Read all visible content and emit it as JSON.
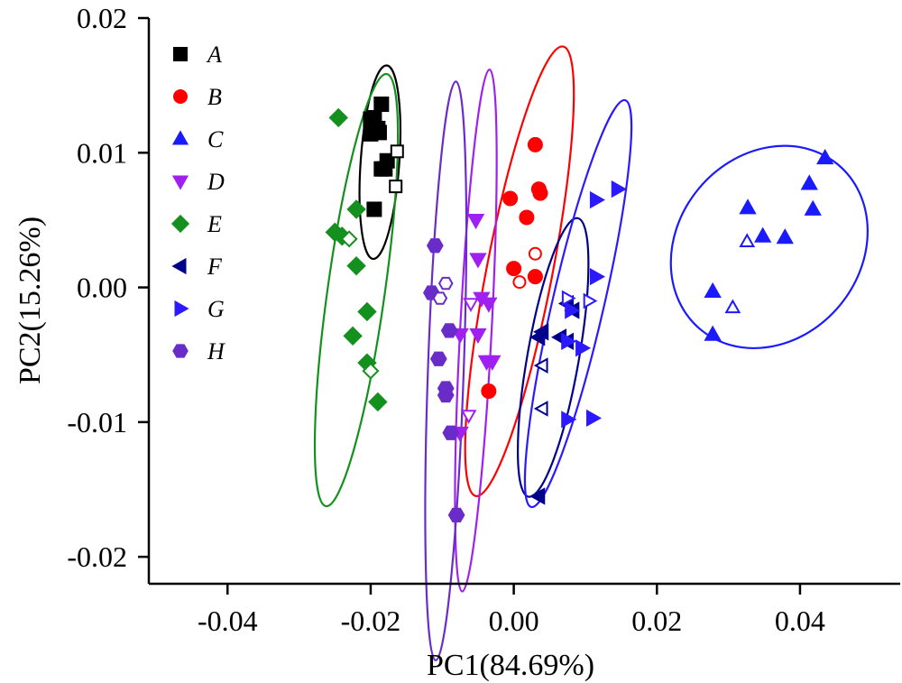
{
  "chart_data": {
    "type": "scatter",
    "title": "",
    "xlabel": "PC1(84.69%)",
    "ylabel": "PC2(15.26%)",
    "xlim": [
      -0.051,
      0.054
    ],
    "ylim": [
      -0.022,
      0.02
    ],
    "xticks": [
      -0.04,
      -0.02,
      0.0,
      0.02,
      0.04
    ],
    "xtick_labels": [
      "-0.04",
      "-0.02",
      "0.00",
      "0.02",
      "0.04"
    ],
    "yticks": [
      -0.02,
      -0.01,
      0.0,
      0.01,
      0.02
    ],
    "ytick_labels": [
      "-0.02",
      "-0.01",
      "0.00",
      "0.01",
      "0.02"
    ],
    "grid": false,
    "legend_position": "top-left",
    "series": [
      {
        "name": "A",
        "marker": "square",
        "color": "#000000",
        "points": [
          [
            -0.0185,
            0.0136
          ],
          [
            -0.0195,
            0.0126
          ],
          [
            -0.02,
            0.0125
          ],
          [
            -0.019,
            0.0118
          ],
          [
            -0.0188,
            0.0115
          ],
          [
            -0.02,
            0.0114
          ],
          [
            -0.0185,
            0.0088
          ],
          [
            -0.0177,
            0.0094
          ],
          [
            -0.018,
            0.0088
          ],
          [
            -0.0195,
            0.0058
          ]
        ],
        "open_points": [
          [
            -0.0163,
            0.0101
          ],
          [
            -0.0165,
            0.0075
          ]
        ],
        "ellipse": {
          "cx": -0.0187,
          "cy": 0.0093,
          "rx": 0.0027,
          "ry": 0.0072,
          "angle": 86,
          "color": "#000000"
        }
      },
      {
        "name": "B",
        "marker": "circle",
        "color": "#ff0000",
        "points": [
          [
            0.003,
            0.0106
          ],
          [
            0.0035,
            0.0073
          ],
          [
            0.0037,
            0.007
          ],
          [
            -0.0005,
            0.0066
          ],
          [
            0.0018,
            0.0052
          ],
          [
            0.0,
            0.0014
          ],
          [
            0.003,
            0.0008
          ],
          [
            -0.0035,
            -0.0077
          ]
        ],
        "open_points": [
          [
            0.003,
            0.0025
          ],
          [
            0.0008,
            0.0004
          ]
        ],
        "ellipse": {
          "cx": 0.0008,
          "cy": 0.0012,
          "rx": 0.0046,
          "ry": 0.017,
          "angle": 79,
          "color": "#ff0000"
        }
      },
      {
        "name": "C",
        "marker": "triangle-up",
        "color": "#1a1aff",
        "points": [
          [
            0.0435,
            0.0096
          ],
          [
            0.0413,
            0.0077
          ],
          [
            0.0418,
            0.0058
          ],
          [
            0.0327,
            0.0059
          ],
          [
            0.0348,
            0.0038
          ],
          [
            0.0379,
            0.0037
          ],
          [
            0.0278,
            -0.0003
          ],
          [
            0.0278,
            -0.0035
          ]
        ],
        "open_points": [
          [
            0.0326,
            0.0034
          ],
          [
            0.0306,
            -0.0015
          ]
        ],
        "ellipse": {
          "cx": 0.0357,
          "cy": 0.003,
          "rx": 0.015,
          "ry": 0.0068,
          "angle": -40,
          "color": "#1a1aff"
        }
      },
      {
        "name": "D",
        "marker": "triangle-down",
        "color": "#a020f0",
        "points": [
          [
            -0.0053,
            0.005
          ],
          [
            -0.005,
            0.0021
          ],
          [
            -0.0045,
            -0.0008
          ],
          [
            -0.0035,
            -0.0012
          ],
          [
            -0.0075,
            -0.0035
          ],
          [
            -0.005,
            -0.0035
          ],
          [
            -0.0038,
            -0.0055
          ],
          [
            -0.003,
            -0.0055
          ],
          [
            -0.0075,
            -0.0108
          ]
        ],
        "open_points": [
          [
            -0.006,
            -0.0012
          ],
          [
            -0.0063,
            -0.0095
          ]
        ],
        "ellipse": {
          "cx": -0.0053,
          "cy": -0.0032,
          "rx": 0.0022,
          "ry": 0.0194,
          "angle": 87,
          "color": "#a020f0"
        }
      },
      {
        "name": "E",
        "marker": "diamond",
        "color": "#14901e",
        "points": [
          [
            -0.0245,
            0.0126
          ],
          [
            -0.022,
            0.0058
          ],
          [
            -0.025,
            0.0041
          ],
          [
            -0.024,
            0.0038
          ],
          [
            -0.022,
            0.0016
          ],
          [
            -0.0205,
            -0.0018
          ],
          [
            -0.0225,
            -0.0036
          ],
          [
            -0.0205,
            -0.0056
          ],
          [
            -0.019,
            -0.0085
          ]
        ],
        "open_points": [
          [
            -0.023,
            0.0036
          ],
          [
            -0.02,
            -0.0062
          ]
        ],
        "ellipse": {
          "cx": -0.022,
          "cy": -0.0002,
          "rx": 0.004,
          "ry": 0.0162,
          "angle": 82,
          "color": "#14901e"
        }
      },
      {
        "name": "F",
        "marker": "triangle-left",
        "color": "#00008b",
        "points": [
          [
            0.0035,
            -0.0037
          ],
          [
            0.0065,
            -0.0037
          ],
          [
            0.0075,
            -0.004
          ],
          [
            0.004,
            -0.0033
          ],
          [
            0.0083,
            -0.0017
          ],
          [
            0.0075,
            -0.0012
          ],
          [
            0.0035,
            -0.0155
          ]
        ],
        "open_points": [
          [
            0.004,
            -0.0058
          ],
          [
            0.004,
            -0.009
          ]
        ],
        "ellipse": {
          "cx": 0.0055,
          "cy": -0.0052,
          "rx": 0.0036,
          "ry": 0.0105,
          "angle": 80,
          "color": "#00008b"
        }
      },
      {
        "name": "G",
        "marker": "triangle-right",
        "color": "#2c1aff",
        "points": [
          [
            0.0145,
            0.0073
          ],
          [
            0.0115,
            0.0065
          ],
          [
            0.0115,
            0.0008
          ],
          [
            0.008,
            -0.0017
          ],
          [
            0.0095,
            -0.0045
          ],
          [
            0.0075,
            -0.004
          ],
          [
            0.0075,
            -0.0098
          ],
          [
            0.011,
            -0.0097
          ]
        ],
        "open_points": [
          [
            0.0075,
            -0.0008
          ],
          [
            0.0105,
            -0.001
          ]
        ],
        "ellipse": {
          "cx": 0.009,
          "cy": -0.0012,
          "rx": 0.0036,
          "ry": 0.0155,
          "angle": 77,
          "color": "#2c1aff"
        }
      },
      {
        "name": "H",
        "marker": "hexagon",
        "color": "#6a2cc8",
        "points": [
          [
            -0.011,
            0.0031
          ],
          [
            -0.0115,
            -0.0004
          ],
          [
            -0.009,
            -0.0032
          ],
          [
            -0.0105,
            -0.0053
          ],
          [
            -0.0095,
            -0.0075
          ],
          [
            -0.0095,
            -0.008
          ],
          [
            -0.0088,
            -0.0108
          ],
          [
            -0.008,
            -0.0169
          ]
        ],
        "open_points": [
          [
            -0.0095,
            0.0003
          ],
          [
            -0.0103,
            -0.0008
          ]
        ],
        "ellipse": {
          "cx": -0.0095,
          "cy": -0.0062,
          "rx": 0.0025,
          "ry": 0.0215,
          "angle": 88,
          "color": "#6a2cc8"
        }
      }
    ]
  }
}
